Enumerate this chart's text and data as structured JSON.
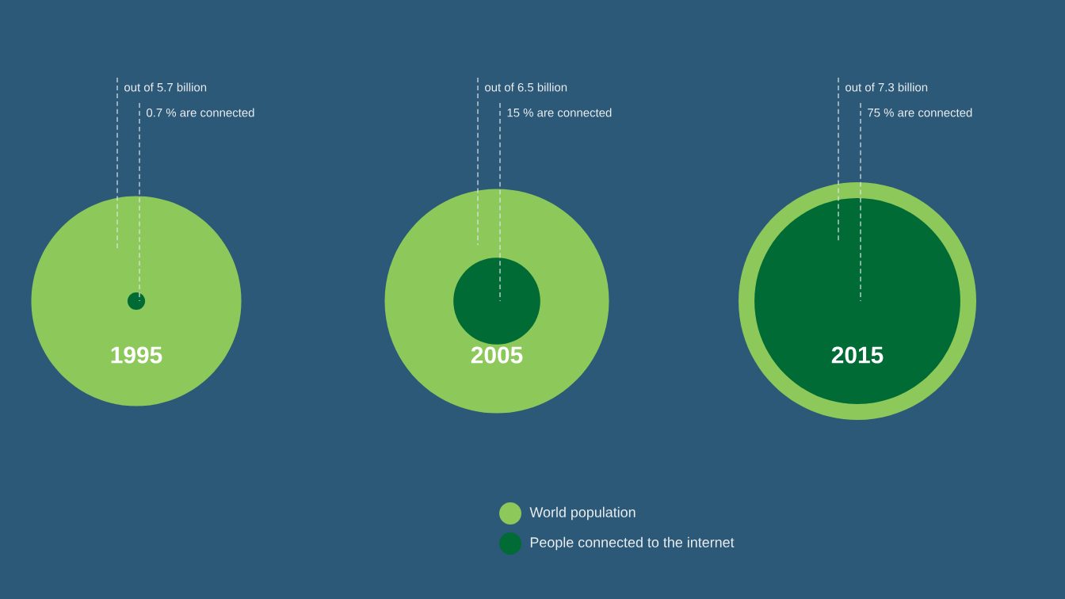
{
  "chart_data": {
    "type": "other",
    "categories": [
      "1995",
      "2005",
      "2015"
    ],
    "series": [
      {
        "name": "World population",
        "color": "#8cc85a",
        "values": [
          5700000000,
          6500000000,
          7300000000
        ],
        "value_labels": [
          "out of 5.7 billion",
          "out of 6.5 billion",
          "out of 7.3 billion"
        ]
      },
      {
        "name": "People connected to the internet",
        "color": "#006b35",
        "values": [
          0.7,
          15,
          75
        ],
        "value_labels": [
          "0.7 % are connected",
          "15 % are connected",
          "75 % are connected"
        ]
      }
    ],
    "legend": "bottom"
  }
}
